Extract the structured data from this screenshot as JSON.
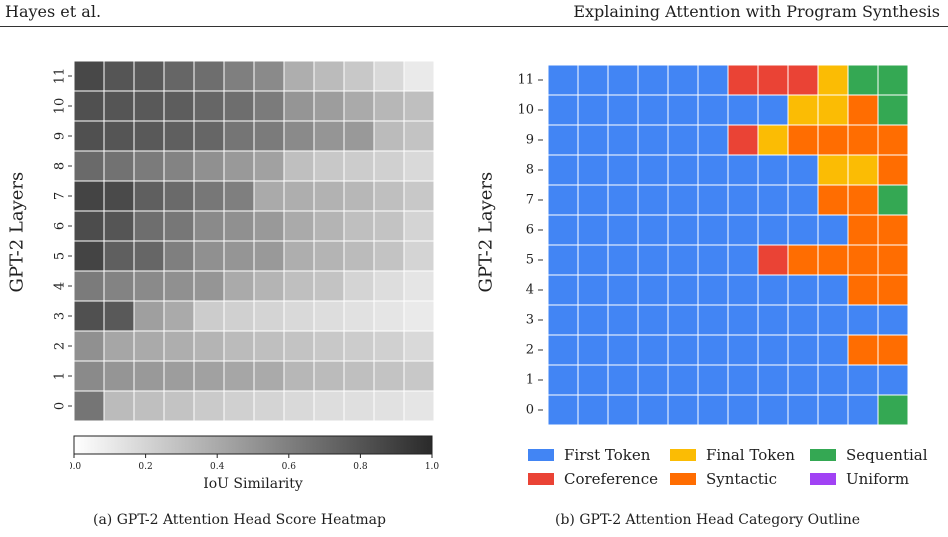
{
  "header": {
    "left": "Hayes et al.",
    "right": "Explaining Attention with Program Synthesis"
  },
  "figure_a": {
    "ylabel": "GPT-2 Layers",
    "colorbar_label": "IoU Similarity",
    "colorbar_ticks": [
      "0.0",
      "0.2",
      "0.4",
      "0.6",
      "0.8",
      "1.0"
    ],
    "caption": "(a) GPT-2 Attention Head Score Heatmap"
  },
  "figure_b": {
    "ylabel": "GPT-2 Layers",
    "caption": "(b) GPT-2 Attention Head Category Outline",
    "legend": [
      {
        "label": "First Token",
        "color": "#4285f4"
      },
      {
        "label": "Final Token",
        "color": "#fbbc04"
      },
      {
        "label": "Sequential",
        "color": "#34a853"
      },
      {
        "label": "Coreference",
        "color": "#ea4335"
      },
      {
        "label": "Syntactic",
        "color": "#ff6d01"
      },
      {
        "label": "Uniform",
        "color": "#a142f4"
      }
    ]
  },
  "chart_data": [
    {
      "type": "heatmap",
      "ylabel": "GPT-2 Layers",
      "colorbar_label": "IoU Similarity",
      "vrange": [
        0.0,
        1.0
      ],
      "y_categories": [
        "0",
        "1",
        "2",
        "3",
        "4",
        "5",
        "6",
        "7",
        "8",
        "9",
        "10",
        "11"
      ],
      "rows": [
        [
          0.65,
          0.32,
          0.3,
          0.28,
          0.25,
          0.22,
          0.2,
          0.18,
          0.16,
          0.15,
          0.14,
          0.12
        ],
        [
          0.55,
          0.5,
          0.48,
          0.46,
          0.44,
          0.42,
          0.4,
          0.34,
          0.32,
          0.3,
          0.28,
          0.26
        ],
        [
          0.52,
          0.42,
          0.4,
          0.38,
          0.35,
          0.32,
          0.3,
          0.28,
          0.26,
          0.24,
          0.22,
          0.18
        ],
        [
          0.82,
          0.78,
          0.45,
          0.4,
          0.24,
          0.22,
          0.2,
          0.18,
          0.16,
          0.14,
          0.12,
          0.1
        ],
        [
          0.62,
          0.58,
          0.55,
          0.52,
          0.5,
          0.4,
          0.35,
          0.3,
          0.28,
          0.2,
          0.16,
          0.12
        ],
        [
          0.88,
          0.75,
          0.72,
          0.6,
          0.52,
          0.5,
          0.48,
          0.38,
          0.35,
          0.32,
          0.28,
          0.2
        ],
        [
          0.84,
          0.8,
          0.68,
          0.64,
          0.55,
          0.52,
          0.48,
          0.4,
          0.35,
          0.3,
          0.28,
          0.2
        ],
        [
          0.88,
          0.85,
          0.75,
          0.7,
          0.64,
          0.6,
          0.4,
          0.38,
          0.36,
          0.34,
          0.3,
          0.26
        ],
        [
          0.7,
          0.66,
          0.62,
          0.58,
          0.52,
          0.48,
          0.44,
          0.3,
          0.26,
          0.24,
          0.22,
          0.18
        ],
        [
          0.82,
          0.8,
          0.78,
          0.75,
          0.72,
          0.65,
          0.62,
          0.55,
          0.5,
          0.48,
          0.32,
          0.28
        ],
        [
          0.82,
          0.8,
          0.78,
          0.76,
          0.72,
          0.68,
          0.62,
          0.5,
          0.46,
          0.4,
          0.34,
          0.3
        ],
        [
          0.86,
          0.8,
          0.78,
          0.72,
          0.68,
          0.6,
          0.55,
          0.38,
          0.32,
          0.26,
          0.18,
          0.1
        ]
      ]
    },
    {
      "type": "heatmap",
      "ylabel": "GPT-2 Layers",
      "y_categories": [
        "0",
        "1",
        "2",
        "3",
        "4",
        "5",
        "6",
        "7",
        "8",
        "9",
        "10",
        "11"
      ],
      "categories": [
        "First Token",
        "Final Token",
        "Sequential",
        "Coreference",
        "Syntactic",
        "Uniform"
      ],
      "rows": [
        [
          "First Token",
          "First Token",
          "First Token",
          "First Token",
          "First Token",
          "First Token",
          "First Token",
          "First Token",
          "First Token",
          "First Token",
          "First Token",
          "Sequential"
        ],
        [
          "First Token",
          "First Token",
          "First Token",
          "First Token",
          "First Token",
          "First Token",
          "First Token",
          "First Token",
          "First Token",
          "First Token",
          "First Token",
          "First Token"
        ],
        [
          "First Token",
          "First Token",
          "First Token",
          "First Token",
          "First Token",
          "First Token",
          "First Token",
          "First Token",
          "First Token",
          "First Token",
          "Syntactic",
          "Syntactic"
        ],
        [
          "First Token",
          "First Token",
          "First Token",
          "First Token",
          "First Token",
          "First Token",
          "First Token",
          "First Token",
          "First Token",
          "First Token",
          "First Token",
          "First Token"
        ],
        [
          "First Token",
          "First Token",
          "First Token",
          "First Token",
          "First Token",
          "First Token",
          "First Token",
          "First Token",
          "First Token",
          "First Token",
          "Syntactic",
          "Syntactic"
        ],
        [
          "First Token",
          "First Token",
          "First Token",
          "First Token",
          "First Token",
          "First Token",
          "First Token",
          "Coreference",
          "Syntactic",
          "Syntactic",
          "Syntactic",
          "Syntactic"
        ],
        [
          "First Token",
          "First Token",
          "First Token",
          "First Token",
          "First Token",
          "First Token",
          "First Token",
          "First Token",
          "First Token",
          "First Token",
          "Syntactic",
          "Syntactic"
        ],
        [
          "First Token",
          "First Token",
          "First Token",
          "First Token",
          "First Token",
          "First Token",
          "First Token",
          "First Token",
          "First Token",
          "Syntactic",
          "Syntactic",
          "Sequential"
        ],
        [
          "First Token",
          "First Token",
          "First Token",
          "First Token",
          "First Token",
          "First Token",
          "First Token",
          "First Token",
          "First Token",
          "Final Token",
          "Final Token",
          "Syntactic"
        ],
        [
          "First Token",
          "First Token",
          "First Token",
          "First Token",
          "First Token",
          "First Token",
          "Coreference",
          "Final Token",
          "Syntactic",
          "Syntactic",
          "Syntactic",
          "Syntactic"
        ],
        [
          "First Token",
          "First Token",
          "First Token",
          "First Token",
          "First Token",
          "First Token",
          "First Token",
          "First Token",
          "Final Token",
          "Final Token",
          "Syntactic",
          "Sequential"
        ],
        [
          "First Token",
          "First Token",
          "First Token",
          "First Token",
          "First Token",
          "First Token",
          "Coreference",
          "Coreference",
          "Coreference",
          "Final Token",
          "Sequential",
          "Sequential"
        ]
      ]
    }
  ]
}
